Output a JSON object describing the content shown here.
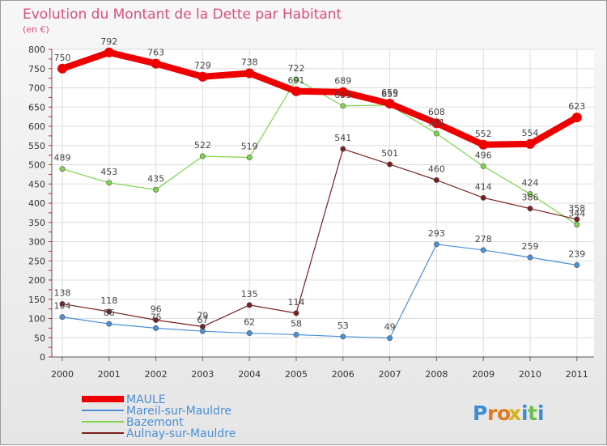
{
  "chart_data": {
    "type": "line",
    "title": "Evolution du Montant de la Dette par Habitant",
    "subtitle": "(en €)",
    "x": [
      "2000",
      "2001",
      "2002",
      "2003",
      "2004",
      "2005",
      "2006",
      "2007",
      "2008",
      "2009",
      "2010",
      "2011"
    ],
    "ylim": [
      0,
      800
    ],
    "yticks": [
      0,
      50,
      100,
      150,
      200,
      250,
      300,
      350,
      400,
      450,
      500,
      550,
      600,
      650,
      700,
      750,
      800
    ],
    "grid": true,
    "legend_position": "bottom-left",
    "series": [
      {
        "name": "MAULE",
        "color": "#ee0000",
        "values": [
          750,
          792,
          763,
          729,
          738,
          691,
          689,
          659,
          608,
          552,
          554,
          623
        ]
      },
      {
        "name": "Mareil-sur-Mauldre",
        "color": "#4a90d9",
        "values": [
          104,
          86,
          75,
          67,
          62,
          58,
          53,
          49,
          293,
          278,
          259,
          239
        ]
      },
      {
        "name": "Bazemont",
        "color": "#7ed44a",
        "values": [
          489,
          453,
          435,
          522,
          519,
          722,
          653,
          655,
          581,
          496,
          424,
          344
        ]
      },
      {
        "name": "Aulnay-sur-Mauldre",
        "color": "#7a1f1f",
        "values": [
          138,
          118,
          96,
          79,
          135,
          114,
          541,
          501,
          460,
          414,
          386,
          358
        ]
      }
    ]
  },
  "logo": {
    "text": "Proxiti",
    "letters": [
      "P",
      "r",
      "o",
      "x",
      "i",
      "t",
      "i"
    ]
  }
}
